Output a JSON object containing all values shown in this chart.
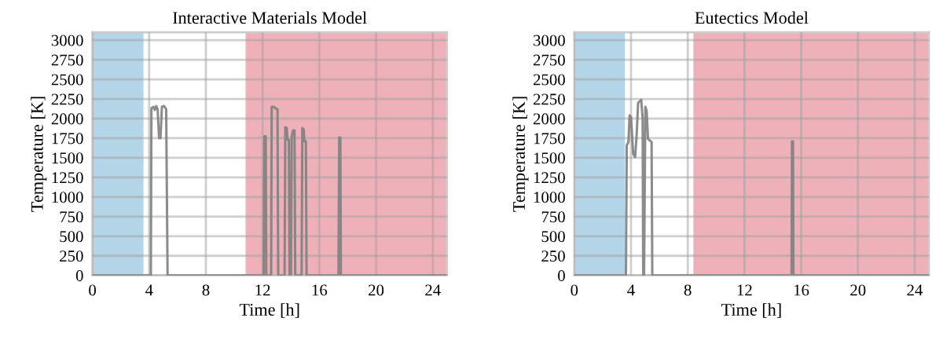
{
  "chart_data": [
    {
      "type": "line",
      "title": "Interactive Materials Model",
      "xlabel": "Time [h]",
      "ylabel": "Temperature [K]",
      "xlim": [
        0,
        25
      ],
      "ylim": [
        0,
        3100
      ],
      "xticks": [
        0,
        4,
        8,
        12,
        16,
        20,
        24
      ],
      "yticks": [
        0,
        250,
        500,
        750,
        1000,
        1250,
        1500,
        1750,
        2000,
        2250,
        2500,
        2750,
        3000
      ],
      "grid": true,
      "bands": [
        {
          "axis": "x",
          "from": 0,
          "to": 3.6,
          "color": "#b4d4e7"
        },
        {
          "axis": "x",
          "from": 10.8,
          "to": 25,
          "color": "#eeb1b9"
        }
      ],
      "series": [
        {
          "color": "#808080",
          "x": [
            0,
            4.12,
            4.16,
            4.3,
            4.4,
            4.5,
            4.6,
            4.7,
            4.8,
            4.9,
            5.05,
            5.2,
            5.3,
            12.08,
            12.12,
            12.22,
            12.26,
            12.6,
            12.64,
            12.8,
            12.9,
            13.05,
            13.1,
            13.55,
            13.6,
            13.7,
            13.75,
            13.85,
            13.9,
            14.0,
            14.05,
            14.15,
            14.25,
            14.3,
            14.75,
            14.8,
            14.9,
            14.95,
            15.05,
            15.1,
            17.35,
            17.4,
            17.48,
            17.52,
            25
          ],
          "values": [
            0,
            0,
            2130,
            2150,
            2110,
            2160,
            2120,
            1750,
            1750,
            2150,
            2160,
            2120,
            0,
            0,
            1775,
            1775,
            0,
            0,
            2150,
            2150,
            2130,
            2120,
            0,
            0,
            1890,
            1880,
            1730,
            1730,
            0,
            0,
            1770,
            1850,
            1850,
            0,
            0,
            1880,
            1860,
            1710,
            1710,
            0,
            0,
            1760,
            1760,
            0,
            0
          ]
        }
      ]
    },
    {
      "type": "line",
      "title": "Eutectics Model",
      "xlabel": "Time [h]",
      "ylabel": "Temperature [K]",
      "xlim": [
        0,
        25
      ],
      "ylim": [
        0,
        3100
      ],
      "xticks": [
        0,
        4,
        8,
        12,
        16,
        20,
        24
      ],
      "yticks": [
        0,
        250,
        500,
        750,
        1000,
        1250,
        1500,
        1750,
        2000,
        2250,
        2500,
        2750,
        3000
      ],
      "grid": true,
      "bands": [
        {
          "axis": "x",
          "from": 0,
          "to": 3.57,
          "color": "#b4d4e7"
        },
        {
          "axis": "x",
          "from": 8.4,
          "to": 25,
          "color": "#eeb1b9"
        }
      ],
      "series": [
        {
          "color": "#808080",
          "x": [
            0,
            3.64,
            3.7,
            3.82,
            3.9,
            4.0,
            4.15,
            4.29,
            4.4,
            4.5,
            4.72,
            4.82,
            4.86,
            4.92,
            5.01,
            5.1,
            5.2,
            5.26,
            5.45,
            5.5,
            15.32,
            15.35,
            15.42,
            15.45,
            25
          ],
          "values": [
            0,
            0,
            1660,
            1700,
            2040,
            2020,
            1550,
            1510,
            1800,
            2200,
            2240,
            2000,
            0,
            0,
            2150,
            2100,
            1740,
            1730,
            1700,
            0,
            0,
            1710,
            1710,
            0,
            0
          ]
        }
      ]
    }
  ]
}
